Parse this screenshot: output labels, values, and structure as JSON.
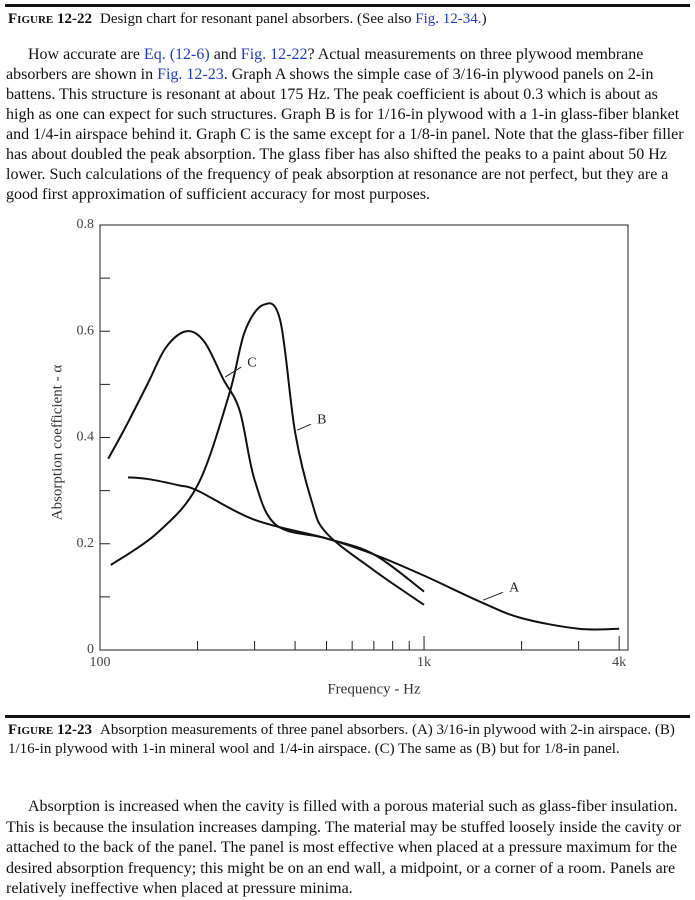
{
  "caption_top": {
    "label": "Figure 12-22",
    "runs": [
      {
        "text": "Design chart for resonant panel absorbers. (See also "
      },
      {
        "text": "Fig. 12-34.",
        "link": true
      },
      {
        "text": ")"
      }
    ]
  },
  "paragraph_1": {
    "runs": [
      {
        "text": "How accurate are "
      },
      {
        "text": "Eq. (12-6)",
        "link": true
      },
      {
        "text": " and "
      },
      {
        "text": "Fig. 12-22",
        "link": true
      },
      {
        "text": "? Actual measurements on three plywood membrane absorbers are shown in "
      },
      {
        "text": "Fig. 12-23",
        "link": true
      },
      {
        "text": ". Graph A shows the simple case of 3/16-in plywood panels on 2-in battens. This structure is resonant at about 175 Hz. The peak coefficient is about 0.3 which is about as high as one can expect for such structures. Graph B is for 1/16-in plywood with a 1-in glass-fiber blanket and 1/4-in airspace behind it. Graph C is the same except for a 1/8-in panel. Note that the glass-fiber filler has about doubled the peak absorption. The glass fiber has also shifted the peaks to a paint about 50 Hz lower. Such calculations of the frequency of peak absorption at resonance are not perfect, but they are a good first approximation of sufficient accuracy for most purposes."
      }
    ]
  },
  "chart_data": {
    "type": "line",
    "xlabel": "Frequency - Hz",
    "ylabel": "Absorption coefficient - α",
    "xscale": "log",
    "xlim": [
      100,
      4260
    ],
    "ylim": [
      0,
      0.8
    ],
    "xticks": [
      100,
      {
        "value": 1000,
        "label": "1k"
      },
      {
        "value": 4000,
        "label": "4k"
      }
    ],
    "xminor": [
      200,
      300,
      400,
      500,
      600,
      700,
      800,
      900,
      2000,
      3000
    ],
    "yticks": [
      0,
      0.2,
      0.4,
      0.6,
      0.8
    ],
    "yminor": [
      0.1,
      0.3,
      0.5,
      0.7
    ],
    "series": [
      {
        "name": "A",
        "color": "#111111",
        "x": [
          122,
          140,
          175,
          200,
          300,
          500,
          700,
          1000,
          1500,
          2000,
          3000,
          4000
        ],
        "values": [
          0.325,
          0.322,
          0.31,
          0.3,
          0.245,
          0.21,
          0.18,
          0.14,
          0.09,
          0.06,
          0.04,
          0.04
        ]
      },
      {
        "name": "B",
        "color": "#111111",
        "x": [
          108,
          150,
          200,
          250,
          280,
          320,
          360,
          400,
          450,
          500,
          700,
          1000
        ],
        "values": [
          0.16,
          0.22,
          0.31,
          0.48,
          0.6,
          0.65,
          0.62,
          0.41,
          0.28,
          0.22,
          0.15,
          0.085
        ]
      },
      {
        "name": "C",
        "color": "#111111",
        "x": [
          106,
          120,
          140,
          160,
          185,
          210,
          240,
          270,
          300,
          350,
          500,
          700,
          1000
        ],
        "values": [
          0.36,
          0.42,
          0.5,
          0.57,
          0.6,
          0.58,
          0.51,
          0.45,
          0.32,
          0.235,
          0.21,
          0.18,
          0.11
        ]
      }
    ]
  },
  "caption_bottom": {
    "label": "Figure 12-23",
    "runs": [
      {
        "text": "Absorption measurements of three panel absorbers. (A) 3/16-in plywood with 2-in airspace. (B) 1/16-in plywood with 1-in mineral wool and 1/4-in airspace. (C) The same as (B) but for 1/8-in panel."
      }
    ]
  },
  "paragraph_2": {
    "runs": [
      {
        "text": "Absorption is increased when the cavity is filled with a porous material such as glass-fiber insulation. This is because the insulation increases damping. The material may be stuffed loosely inside the cavity or attached to the back of the panel. The panel is most effective when placed at a pressure maximum for the desired absorption frequency; this might be on an end wall, a midpoint, or a corner of a room. Panels are relatively ineffective when placed at pressure minima."
      }
    ]
  }
}
